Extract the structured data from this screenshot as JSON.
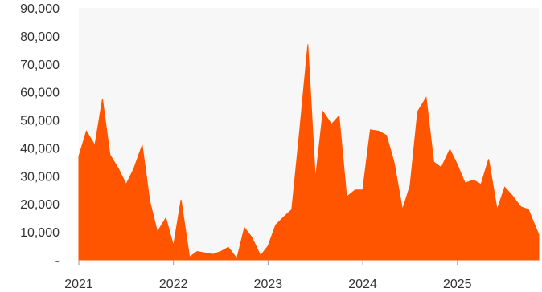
{
  "chart_data": {
    "type": "area",
    "title": "",
    "xlabel": "",
    "ylabel": "",
    "ylim": [
      0,
      90000
    ],
    "xlim": [
      2021.0,
      2025.86
    ],
    "grid": false,
    "legend": "none",
    "colors": {
      "area": "#FF5500",
      "plot_bg": "#F7F7F7",
      "axis_text": "#333333",
      "tick": "#999999"
    },
    "y_ticks": [
      {
        "value": 0,
        "label": "-"
      },
      {
        "value": 10000,
        "label": "10,000"
      },
      {
        "value": 20000,
        "label": "20,000"
      },
      {
        "value": 30000,
        "label": "30,000"
      },
      {
        "value": 40000,
        "label": "40,000"
      },
      {
        "value": 50000,
        "label": "50,000"
      },
      {
        "value": 60000,
        "label": "60,000"
      },
      {
        "value": 70000,
        "label": "70,000"
      },
      {
        "value": 80000,
        "label": "80,000"
      },
      {
        "value": 90000,
        "label": "90,000"
      }
    ],
    "x_ticks": [
      {
        "value": 2021,
        "label": "2021"
      },
      {
        "value": 2022,
        "label": "2022"
      },
      {
        "value": 2023,
        "label": "2023"
      },
      {
        "value": 2024,
        "label": "2024"
      },
      {
        "value": 2025,
        "label": "2025"
      }
    ],
    "series": [
      {
        "x": [
          2021.0,
          2021.08,
          2021.17,
          2021.25,
          2021.33,
          2021.42,
          2021.5,
          2021.58,
          2021.67,
          2021.75,
          2021.83,
          2021.92,
          2022.0,
          2022.08,
          2022.17,
          2022.25,
          2022.33,
          2022.42,
          2022.5,
          2022.58,
          2022.67,
          2022.75,
          2022.83,
          2022.92,
          2023.0,
          2023.08,
          2023.17,
          2023.25,
          2023.33,
          2023.42,
          2023.5,
          2023.58,
          2023.67,
          2023.75,
          2023.83,
          2023.92,
          2024.0,
          2024.08,
          2024.17,
          2024.25,
          2024.33,
          2024.42,
          2024.5,
          2024.58,
          2024.67,
          2024.75,
          2024.83,
          2024.92,
          2025.0,
          2025.08,
          2025.17,
          2025.25,
          2025.33,
          2025.42,
          2025.5,
          2025.58,
          2025.67,
          2025.75,
          2025.86
        ],
        "values": [
          37000,
          46000,
          41000,
          57500,
          37500,
          32500,
          27000,
          32500,
          41000,
          21000,
          10000,
          15000,
          5000,
          21500,
          1000,
          3000,
          2500,
          2000,
          3000,
          4500,
          500,
          11500,
          8000,
          1500,
          5000,
          12500,
          15500,
          18000,
          45000,
          77000,
          29000,
          53000,
          48500,
          51500,
          22500,
          25000,
          25000,
          46500,
          46000,
          44500,
          35000,
          18000,
          26500,
          53000,
          58000,
          35000,
          33000,
          39500,
          34000,
          27500,
          28500,
          27000,
          36000,
          18000,
          26000,
          23000,
          19000,
          18000,
          9000
        ]
      }
    ]
  }
}
